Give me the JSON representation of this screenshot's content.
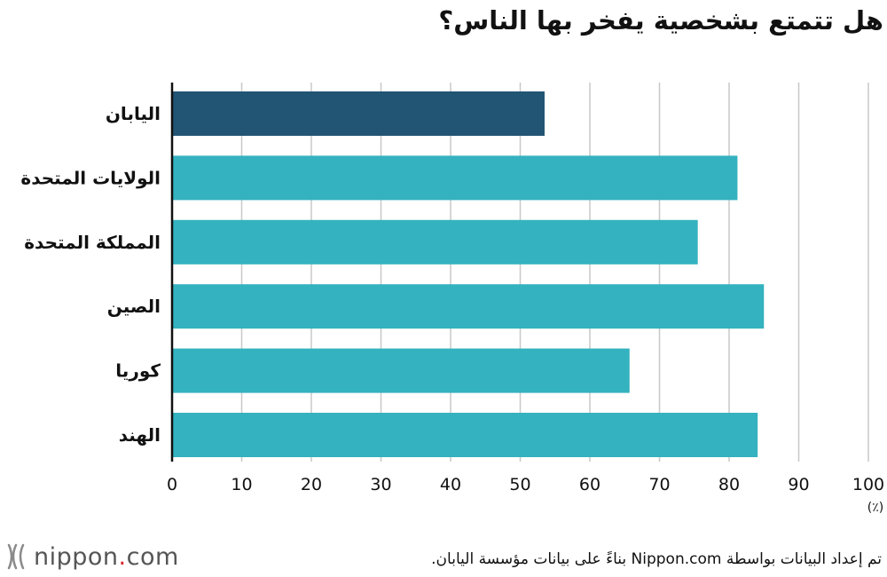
{
  "title": "هل تتمتع بشخصية يفخر بها الناس؟",
  "chart_data": {
    "type": "bar",
    "orientation": "horizontal",
    "categories": [
      "اليابان",
      "الولايات المتحدة",
      "المملكة المتحدة",
      "الصين",
      "كوريا",
      "الهند"
    ],
    "values": [
      53.5,
      81.2,
      75.5,
      85.0,
      65.7,
      84.1
    ],
    "highlight_index": 0,
    "colors": {
      "highlight": "#225473",
      "default": "#34b2bf",
      "grid": "#c8c8c8",
      "axis": "#111111"
    },
    "xlim": [
      0,
      100
    ],
    "xticks": [
      0,
      10,
      20,
      30,
      40,
      50,
      60,
      70,
      80,
      90,
      100
    ],
    "xunit": "(٪)",
    "grid": true
  },
  "footer": {
    "logo_name": "nippon",
    "logo_dot": ".",
    "logo_tld": "com",
    "source": "تم إعداد البيانات بواسطة Nippon.com بناءً على بيانات مؤسسة اليابان."
  }
}
